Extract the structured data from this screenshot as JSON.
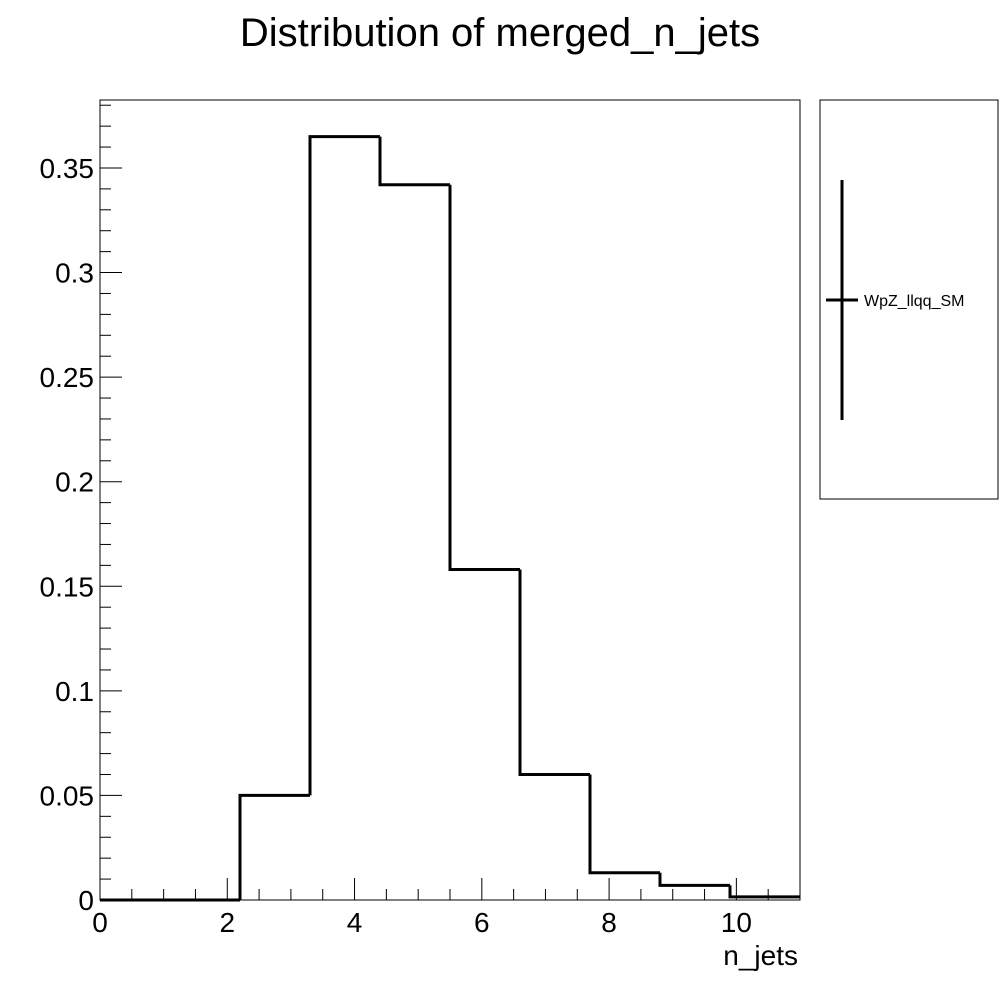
{
  "chart_data": {
    "type": "bar",
    "title": "Distribution of merged_n_jets",
    "xlabel": "n_jets",
    "ylabel": "",
    "xlim": [
      0,
      11
    ],
    "ylim": [
      0,
      0.3825
    ],
    "bin_edges": [
      0,
      1.1,
      2.2,
      3.3,
      4.4,
      5.5,
      6.6,
      7.7,
      8.8,
      9.9,
      11
    ],
    "series": [
      {
        "name": "WpZ_llqq_SM",
        "color": "#000000",
        "values": [
          0.0,
          0.0,
          0.05,
          0.365,
          0.342,
          0.158,
          0.06,
          0.013,
          0.007,
          0.0015
        ]
      }
    ],
    "x_ticks": [
      0,
      2,
      4,
      6,
      8,
      10
    ],
    "x_tick_labels": [
      "0",
      "2",
      "4",
      "6",
      "8",
      "10"
    ],
    "y_ticks": [
      0,
      0.05,
      0.1,
      0.15,
      0.2,
      0.25,
      0.3,
      0.35
    ],
    "y_tick_labels": [
      "0",
      "0.05",
      "0.1",
      "0.15",
      "0.2",
      "0.25",
      "0.3",
      "0.35"
    ],
    "legend": {
      "placement": "right",
      "entries": [
        "WpZ_llqq_SM"
      ]
    },
    "grid": false
  }
}
